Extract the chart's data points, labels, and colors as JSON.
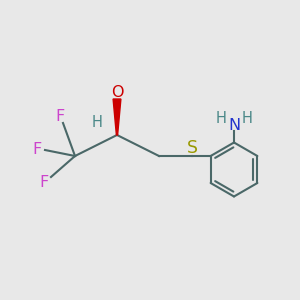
{
  "bg_color": "#e8e8e8",
  "bond_color": "#4a6868",
  "bond_lw": 1.5,
  "F_color": "#cc44cc",
  "O_color": "#cc0000",
  "S_color": "#999900",
  "N_color": "#2233cc",
  "H_color": "#4a8888",
  "wedge_color": "#cc0000",
  "fig_size": [
    3.0,
    3.0
  ],
  "dpi": 100,
  "xlim": [
    0,
    10
  ],
  "ylim": [
    0,
    10
  ]
}
